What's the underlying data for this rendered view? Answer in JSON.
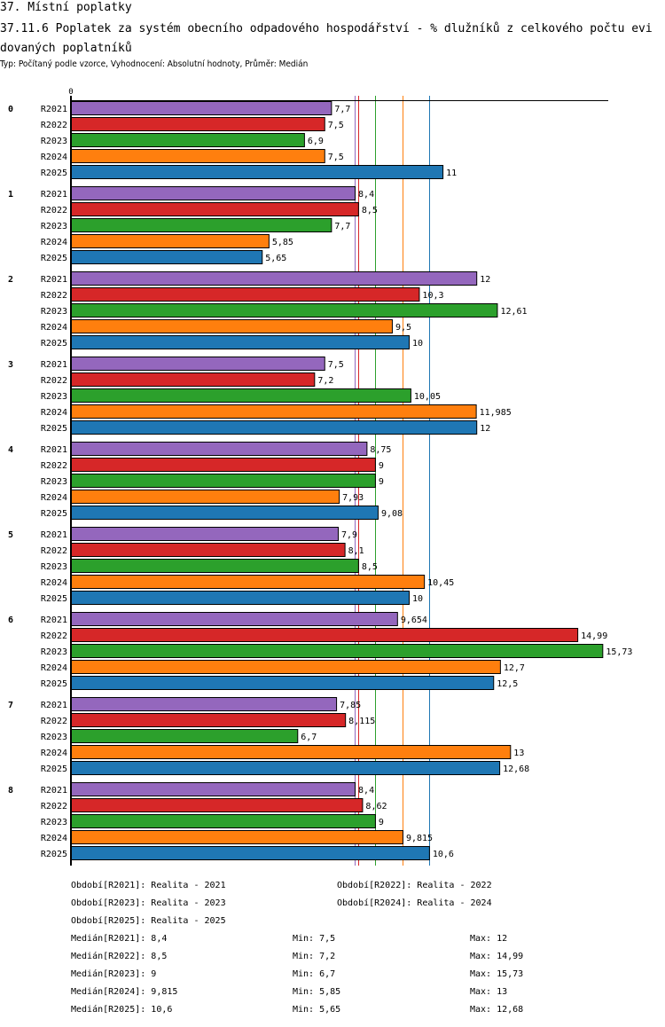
{
  "header": {
    "section_title": "37. Místní poplatky",
    "chart_title": "37.11.6 Poplatek za systém obecního odpadového hospodářství  - % dlužníků z celkového počtu evidovaných poplatníků",
    "subtitle": "Typ: Počítaný podle vzorce, Vyhodnocení: Absolutní hodnoty, Průměr: Medián"
  },
  "chart_data": {
    "type": "bar",
    "orientation": "horizontal",
    "title": "37.11.6 Poplatek za systém obecního odpadového hospodářství  - % dlužníků z celkového počtu evidovaných poplatníků",
    "xlabel": "",
    "ylabel": "",
    "x_tick_labels": [
      "0"
    ],
    "xlim": [
      0,
      15.9
    ],
    "categories": [
      "0",
      "1",
      "2",
      "3",
      "4",
      "5",
      "6",
      "7",
      "8"
    ],
    "series": [
      {
        "name": "R2021",
        "color": "#9467bd",
        "values": [
          7.7,
          8.4,
          12,
          7.5,
          8.75,
          7.9,
          9.654,
          7.85,
          8.4
        ],
        "labels": [
          "7,7",
          "8,4",
          "12",
          "7,5",
          "8,75",
          "7,9",
          "9,654",
          "7,85",
          "8,4"
        ]
      },
      {
        "name": "R2022",
        "color": "#d62728",
        "values": [
          7.5,
          8.5,
          10.3,
          7.2,
          9,
          8.1,
          14.99,
          8.115,
          8.62
        ],
        "labels": [
          "7,5",
          "8,5",
          "10,3",
          "7,2",
          "9",
          "8,1",
          "14,99",
          "8,115",
          "8,62"
        ]
      },
      {
        "name": "R2023",
        "color": "#2ca02c",
        "values": [
          6.9,
          7.7,
          12.61,
          10.05,
          9,
          8.5,
          15.73,
          6.7,
          9
        ],
        "labels": [
          "6,9",
          "7,7",
          "12,61",
          "10,05",
          "9",
          "8,5",
          "15,73",
          "6,7",
          "9"
        ]
      },
      {
        "name": "R2024",
        "color": "#ff7f0e",
        "values": [
          7.5,
          5.85,
          9.5,
          11.985,
          7.93,
          10.45,
          12.7,
          13,
          9.815
        ],
        "labels": [
          "7,5",
          "5,85",
          "9,5",
          "11,985",
          "7,93",
          "10,45",
          "12,7",
          "13",
          "9,815"
        ]
      },
      {
        "name": "R2025",
        "color": "#1f77b4",
        "values": [
          11,
          5.65,
          10,
          12,
          9.08,
          10,
          12.5,
          12.68,
          10.6
        ],
        "labels": [
          "11",
          "5,65",
          "10",
          "12",
          "9,08",
          "10",
          "12,5",
          "12,68",
          "10,6"
        ]
      }
    ],
    "reference_lines": [
      {
        "name": "Medián R2021",
        "value": 8.4,
        "color": "#9467bd"
      },
      {
        "name": "Medián R2022",
        "value": 8.5,
        "color": "#d62728"
      },
      {
        "name": "Medián R2023",
        "value": 9,
        "color": "#2ca02c"
      },
      {
        "name": "Medián R2024",
        "value": 9.815,
        "color": "#ff7f0e"
      },
      {
        "name": "Medián R2025",
        "value": 10.6,
        "color": "#1f77b4"
      }
    ],
    "grid": false,
    "legend_position": "bottom"
  },
  "legend": {
    "periods": [
      "Období[R2021]: Realita - 2021",
      "Období[R2022]: Realita - 2022",
      "Období[R2023]: Realita - 2023",
      "Období[R2024]: Realita - 2024",
      "Období[R2025]: Realita - 2025"
    ],
    "stats": [
      {
        "median": "Medián[R2021]: 8,4",
        "min": "Min: 7,5",
        "max": "Max: 12"
      },
      {
        "median": "Medián[R2022]: 8,5",
        "min": "Min: 7,2",
        "max": "Max: 14,99"
      },
      {
        "median": "Medián[R2023]: 9",
        "min": "Min: 6,7",
        "max": "Max: 15,73"
      },
      {
        "median": "Medián[R2024]: 9,815",
        "min": "Min: 5,85",
        "max": "Max: 13"
      },
      {
        "median": "Medián[R2025]: 10,6",
        "min": "Min: 5,65",
        "max": "Max: 12,68"
      }
    ]
  }
}
